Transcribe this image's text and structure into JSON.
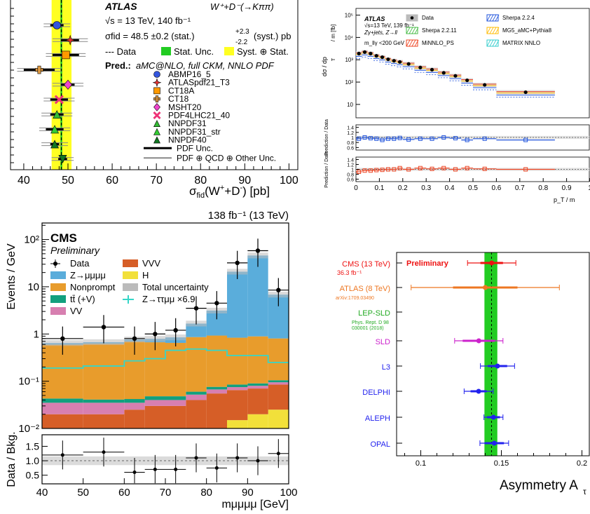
{
  "panelA": {
    "chart_data": {
      "type": "scatter",
      "title": "",
      "xlabel_main": "σ",
      "xlabel_sub": "fid",
      "xlabel_rest": "(W",
      "xlabel_sup1": "+",
      "xlabel_mid": "+D",
      "xlabel_sup2": "-",
      "xlabel_end": ") [pb]",
      "xlim": [
        37,
        102
      ],
      "xticks": [
        40,
        50,
        60,
        70,
        80,
        90,
        100
      ],
      "experiment": "ATLAS",
      "channel": "W⁺+D⁻(→Kππ)",
      "line_energy": "√s = 13 TeV, 140 fb⁻¹",
      "line_sigma": "σfid = 48.5 ±0.2 (stat.)",
      "sigma_up": "+2.3",
      "sigma_dn": "-2.2",
      "sigma_tail": "(syst.) pb",
      "legend_data": "--- Data",
      "legend_stat": "Stat. Unc.",
      "legend_syst": "Syst. ⊕ Stat.",
      "pred_label": "Pred.:",
      "pred_text": "aMC@NLO, full CKM, NNLO PDF",
      "data_value": 48.5,
      "stat_band": [
        48.3,
        48.7
      ],
      "syst_band": [
        46.3,
        50.8
      ],
      "predictions": [
        {
          "name": "ABMP16_5",
          "value": 47.5,
          "pdf": 1.5,
          "total": 3.0,
          "color": "#3355dd",
          "marker": "circle"
        },
        {
          "name": "ATLASpdf21_T3",
          "value": 50.5,
          "pdf": 2.0,
          "total": 4.0,
          "color": "#ee3333",
          "marker": "star"
        },
        {
          "name": "CT18A",
          "value": 49.5,
          "pdf": 3.0,
          "total": 4.5,
          "color": "#ff9900",
          "marker": "square"
        },
        {
          "name": "CT18",
          "value": 43.5,
          "pdf": 3.5,
          "total": 5.0,
          "color": "#dd9944",
          "marker": "cross"
        },
        {
          "name": "MSHT20",
          "value": 50.0,
          "pdf": 1.5,
          "total": 3.5,
          "color": "#ee44cc",
          "marker": "diamond"
        },
        {
          "name": "PDF4LHC21_40",
          "value": 48.0,
          "pdf": 2.0,
          "total": 3.5,
          "color": "#ee3377",
          "marker": "x"
        },
        {
          "name": "NNPDF31",
          "value": 47.5,
          "pdf": 1.5,
          "total": 3.5,
          "color": "#33bb33",
          "marker": "triangle"
        },
        {
          "name": "NNPDF31_str",
          "value": 47.0,
          "pdf": 2.0,
          "total": 3.5,
          "color": "#33cc33",
          "marker": "triangle"
        },
        {
          "name": "NNPDF40",
          "value": 47.0,
          "pdf": 1.0,
          "total": 3.0,
          "color": "#117722",
          "marker": "triangle"
        },
        {
          "name": "",
          "value": 48.8,
          "pdf": 1.0,
          "total": 2.5,
          "color": "#117722",
          "marker": "triangle-down"
        }
      ],
      "legend_pdf_unc": "PDF Unc.",
      "legend_total_unc": "PDF ⊕ QCD ⊕ Other Unc."
    }
  },
  "panelB": {
    "chart_data": {
      "type": "line",
      "ylabel_top": "dσ / dp_T^{ll γ} / m_{llγ} [fb]",
      "ylabel_ratio1": "Prediction / Data",
      "ylabel_ratio2": "Prediction / Data",
      "xlabel": "p_T^{llγ} / m_{llγ}",
      "experiment": "ATLAS",
      "line1": "√s=13 TeV, 139 fb⁻¹",
      "line2": "Zγ+jets,  Z→ll",
      "line3": "m_llγ <200 GeV",
      "legend": [
        "Data",
        "Sherpa 2.2.4",
        "Sherpa 2.2.11",
        "MG5_aMC+Pythia8",
        "MiNNLO_PS",
        "MATRIX NNLO"
      ],
      "xlim": [
        0,
        1.0
      ],
      "xticks": [
        "0",
        "0.1",
        "0.2",
        "0.3",
        "0.4",
        "0.5",
        "0.6",
        "0.7",
        "0.8",
        "0.9",
        "1"
      ],
      "yticks": [
        "10",
        "10²",
        "10³",
        "10⁴",
        "10⁵"
      ],
      "ratio_ticks": [
        "0.6",
        "0.8",
        "1",
        "1.2",
        "1.4"
      ],
      "ylim_log": [
        10,
        100000
      ],
      "bins_x": [
        0.0,
        0.025,
        0.05,
        0.075,
        0.1,
        0.125,
        0.15,
        0.175,
        0.2,
        0.25,
        0.3,
        0.35,
        0.4,
        0.45,
        0.5,
        0.6,
        0.85,
        1.0
      ],
      "data_y": [
        1900,
        2200,
        1900,
        1500,
        1300,
        1050,
        900,
        800,
        650,
        450,
        360,
        260,
        190,
        120,
        75,
        35
      ],
      "ratio1": [
        0.95,
        1.0,
        0.97,
        0.95,
        0.9,
        0.95,
        0.95,
        0.98,
        0.92,
        0.95,
        0.95,
        1.0,
        0.97,
        0.9,
        0.95,
        0.9
      ],
      "ratio2": [
        0.9,
        0.95,
        0.95,
        0.97,
        0.98,
        1.0,
        1.0,
        1.05,
        1.0,
        1.05,
        1.02,
        1.05,
        1.0,
        1.05,
        1.02,
        1.0
      ],
      "colors": {
        "data": "#000000",
        "sherpa224": "#2255dd",
        "sherpa2211": "#44bb44",
        "mg5": "#ffbb00",
        "minnlo": "#ee4422",
        "matrix": "#33cccc"
      }
    }
  },
  "panelC": {
    "chart_data": {
      "type": "bar",
      "title_right": "138 fb⁻¹ (13 TeV)",
      "experiment": "CMS",
      "status": "Preliminary",
      "ylabel": "Events / GeV",
      "ylabel_ratio": "Data / Bkg.",
      "xlabel": "m_μμμμ [GeV]",
      "xlim": [
        40,
        100
      ],
      "xticks": [
        "40",
        "50",
        "60",
        "70",
        "80",
        "90",
        "100"
      ],
      "yticks": [
        "10⁻²",
        "10⁻¹",
        "1",
        "10",
        "10²"
      ],
      "ratio_ticks": [
        "0.5",
        "1.0",
        "1.5"
      ],
      "legend": [
        "Data",
        "Z→μμμμ",
        "Nonprompt",
        "tt̄ (+V)",
        "VV",
        "VVV",
        "H",
        "Total uncertainty",
        "Z→ττμμ ×6.9"
      ],
      "bins": [
        40,
        50,
        60,
        65,
        70,
        75,
        80,
        85,
        90,
        95,
        100
      ],
      "stack": {
        "H": [
          0.0,
          0.0,
          0.0,
          0.0,
          0.0,
          0.0,
          0.01,
          0.015,
          0.02,
          0.025
        ],
        "VVV": [
          0.02,
          0.02,
          0.025,
          0.03,
          0.03,
          0.04,
          0.045,
          0.05,
          0.05,
          0.06
        ],
        "VV": [
          0.015,
          0.015,
          0.01,
          0.01,
          0.01,
          0.012,
          0.012,
          0.01,
          0.01,
          0.01
        ],
        "ttV": [
          0.008,
          0.006,
          0.007,
          0.008,
          0.008,
          0.008,
          0.009,
          0.01,
          0.01,
          0.01
        ],
        "Nonprompt": [
          0.55,
          0.58,
          0.65,
          0.62,
          0.6,
          0.8,
          0.85,
          0.75,
          0.8,
          0.7
        ],
        "Zmumumumu": [
          0.05,
          0.05,
          0.07,
          0.12,
          0.2,
          0.8,
          2.2,
          20.0,
          45.0,
          6.0
        ]
      },
      "signal_x69": [
        0.19,
        0.21,
        0.27,
        0.3,
        0.45,
        0.48,
        0.45,
        0.35,
        0.35,
        0.25
      ],
      "data_x": [
        45,
        55,
        62.5,
        67.5,
        72.5,
        77.5,
        82.5,
        87.5,
        92.5,
        97.5
      ],
      "data_y": [
        0.8,
        1.4,
        0.8,
        1.0,
        1.2,
        3.5,
        4.5,
        32.0,
        58.0,
        8.5
      ],
      "ratio_y": [
        1.2,
        1.3,
        0.6,
        0.7,
        0.7,
        1.1,
        0.75,
        1.1,
        1.0,
        1.25
      ],
      "colors": {
        "Zmumumumu": "#5aaddb",
        "Nonprompt": "#e89c2c",
        "ttV": "#12a07e",
        "VV": "#d77fb0",
        "VVV": "#d65e27",
        "H": "#f2e03a",
        "signal": "#36d6c8"
      }
    }
  },
  "panelD": {
    "chart_data": {
      "type": "scatter",
      "xlabel": "Asymmetry A",
      "xlabel_sub": "τ",
      "xlim": [
        0.085,
        0.205
      ],
      "xticks": [
        "0.1",
        "0.15",
        "0.2"
      ],
      "band_lep": [
        0.1395,
        0.1475
      ],
      "lep_central": 0.1439,
      "measurements": [
        {
          "label": "CMS (13 TeV)",
          "sub": "36.3 fb⁻¹",
          "value": 0.144,
          "stat": 0.007,
          "tot": 0.015,
          "color": "#ee1111",
          "extra": "Preliminary"
        },
        {
          "label": "ATLAS (8 TeV)",
          "sub": "arXiv:1709.03490",
          "value": 0.14,
          "stat": 0.02,
          "tot": 0.046,
          "color": "#ee7722"
        },
        {
          "label": "LEP-SLD",
          "sub": "Phys. Rept. D 98",
          "sub2": "030001 (2018)",
          "value": null,
          "color": "#22aa22"
        },
        {
          "label": "SLD",
          "value": 0.136,
          "stat": 0.01,
          "tot": 0.015,
          "color": "#cc22cc"
        },
        {
          "label": "L3",
          "value": 0.1476,
          "stat": 0.006,
          "tot": 0.0106,
          "color": "#2222ee"
        },
        {
          "label": "DELPHI",
          "value": 0.1359,
          "stat": 0.005,
          "tot": 0.009,
          "color": "#2222ee"
        },
        {
          "label": "ALEPH",
          "value": 0.1451,
          "stat": 0.004,
          "tot": 0.0059,
          "color": "#2222ee"
        },
        {
          "label": "OPAL",
          "value": 0.1456,
          "stat": 0.006,
          "tot": 0.0089,
          "color": "#2222ee"
        }
      ]
    }
  }
}
